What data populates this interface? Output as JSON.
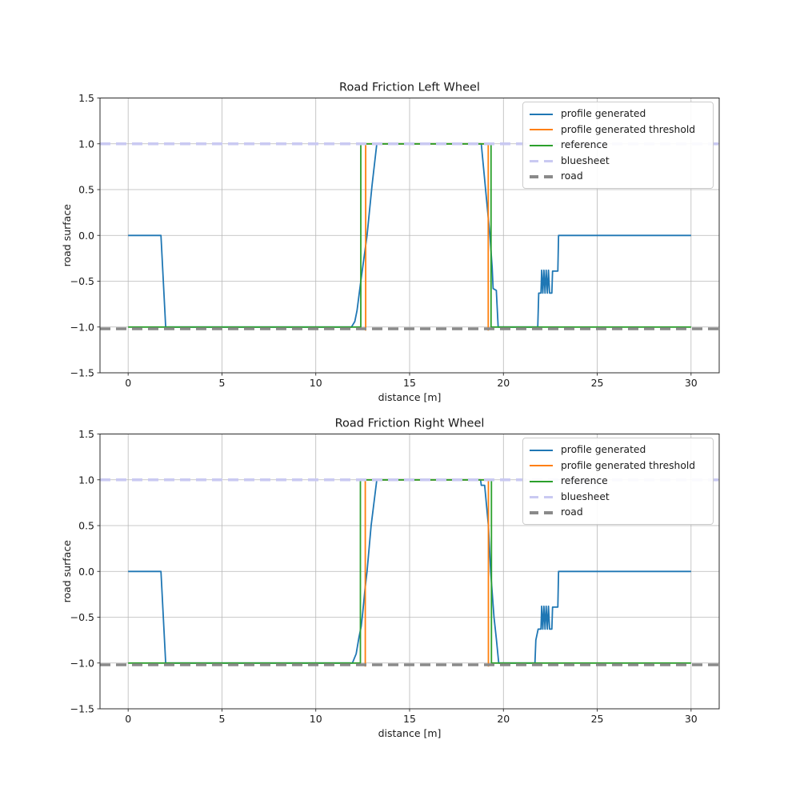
{
  "figure": {
    "background": "#ffffff",
    "grid_color": "#b8b8b8",
    "spine_color": "#2b2b2b",
    "text_color": "#1a1a1a"
  },
  "chart_data": [
    {
      "type": "line",
      "title": "Road Friction Left Wheel",
      "xlabel": "distance [m]",
      "ylabel": "road surface",
      "xlim": [
        -1.5,
        31.5
      ],
      "ylim": [
        -1.5,
        1.5
      ],
      "xticks": [
        0,
        5,
        10,
        15,
        20,
        25,
        30
      ],
      "yticks": [
        -1.5,
        -1.0,
        -0.5,
        0.0,
        0.5,
        1.0,
        1.5
      ],
      "grid": true,
      "legend_position": "upper right",
      "series": [
        {
          "name": "profile generated",
          "color": "#1f77b4",
          "line_style": "solid",
          "line_width": 1.8,
          "points": [
            [
              0,
              0
            ],
            [
              1.75,
              0
            ],
            [
              2.0,
              -1
            ],
            [
              11.9,
              -1
            ],
            [
              12.08,
              -0.94
            ],
            [
              12.2,
              -0.82
            ],
            [
              12.4,
              -0.5
            ],
            [
              12.6,
              -0.2
            ],
            [
              12.73,
              0
            ],
            [
              13.0,
              0.55
            ],
            [
              13.25,
              1
            ],
            [
              18.82,
              1
            ],
            [
              19.05,
              0.5
            ],
            [
              19.28,
              0
            ],
            [
              19.4,
              -0.35
            ],
            [
              19.45,
              -0.58
            ],
            [
              19.62,
              -0.6
            ],
            [
              19.72,
              -1
            ],
            [
              21.83,
              -1
            ],
            [
              21.88,
              -0.63
            ],
            [
              22.0,
              -0.63
            ],
            [
              22.04,
              -0.38
            ],
            [
              22.1,
              -0.63
            ],
            [
              22.16,
              -0.38
            ],
            [
              22.22,
              -0.63
            ],
            [
              22.28,
              -0.38
            ],
            [
              22.34,
              -0.63
            ],
            [
              22.4,
              -0.38
            ],
            [
              22.46,
              -0.63
            ],
            [
              22.58,
              -0.63
            ],
            [
              22.62,
              -0.39
            ],
            [
              22.9,
              -0.39
            ],
            [
              22.94,
              0
            ],
            [
              30,
              0
            ]
          ]
        },
        {
          "name": "profile generated threshold",
          "color": "#ff7f0e",
          "line_style": "solid",
          "line_width": 1.8,
          "points": [
            [
              12.66,
              -1.04
            ],
            [
              12.66,
              1
            ],
            [
              19.19,
              1
            ],
            [
              19.19,
              -1.04
            ]
          ]
        },
        {
          "name": "reference",
          "color": "#2ca02c",
          "line_style": "solid",
          "line_width": 1.8,
          "points": [
            [
              0,
              -1
            ],
            [
              12.4,
              -1
            ],
            [
              12.4,
              1
            ],
            [
              19.34,
              1
            ],
            [
              19.34,
              -1
            ],
            [
              30,
              -1
            ]
          ]
        },
        {
          "name": "bluesheet",
          "color": "#c9c9f2",
          "line_style": "dashed",
          "line_width": 3.5,
          "points": [
            [
              -1.5,
              1
            ],
            [
              31.5,
              1
            ]
          ]
        },
        {
          "name": "road",
          "color": "#8a8a8a",
          "line_style": "dashed",
          "line_width": 3.5,
          "points": [
            [
              -1.5,
              -1.02
            ],
            [
              31.5,
              -1.02
            ]
          ]
        }
      ]
    },
    {
      "type": "line",
      "title": "Road Friction Right Wheel",
      "xlabel": "distance [m]",
      "ylabel": "road surface",
      "xlim": [
        -1.5,
        31.5
      ],
      "ylim": [
        -1.5,
        1.5
      ],
      "xticks": [
        0,
        5,
        10,
        15,
        20,
        25,
        30
      ],
      "yticks": [
        -1.5,
        -1.0,
        -0.5,
        0.0,
        0.5,
        1.0,
        1.5
      ],
      "grid": true,
      "legend_position": "upper right",
      "series": [
        {
          "name": "profile generated",
          "color": "#1f77b4",
          "line_style": "solid",
          "line_width": 1.8,
          "points": [
            [
              0,
              0
            ],
            [
              1.75,
              0
            ],
            [
              2.0,
              -1
            ],
            [
              11.95,
              -1
            ],
            [
              12.15,
              -0.9
            ],
            [
              12.3,
              -0.72
            ],
            [
              12.42,
              -0.6
            ],
            [
              12.5,
              -0.45
            ],
            [
              12.62,
              -0.2
            ],
            [
              12.73,
              0
            ],
            [
              12.95,
              0.5
            ],
            [
              13.25,
              1
            ],
            [
              18.78,
              1
            ],
            [
              18.82,
              0.94
            ],
            [
              19.0,
              0.94
            ],
            [
              19.2,
              0.5
            ],
            [
              19.32,
              0
            ],
            [
              19.5,
              -0.5
            ],
            [
              19.56,
              -0.62
            ],
            [
              19.63,
              -0.75
            ],
            [
              19.75,
              -1
            ],
            [
              21.68,
              -1
            ],
            [
              21.73,
              -0.75
            ],
            [
              21.85,
              -0.63
            ],
            [
              22.0,
              -0.63
            ],
            [
              22.04,
              -0.38
            ],
            [
              22.1,
              -0.63
            ],
            [
              22.16,
              -0.38
            ],
            [
              22.22,
              -0.63
            ],
            [
              22.28,
              -0.38
            ],
            [
              22.34,
              -0.63
            ],
            [
              22.4,
              -0.38
            ],
            [
              22.46,
              -0.63
            ],
            [
              22.58,
              -0.63
            ],
            [
              22.62,
              -0.39
            ],
            [
              22.9,
              -0.39
            ],
            [
              22.94,
              0
            ],
            [
              30,
              0
            ]
          ]
        },
        {
          "name": "profile generated threshold",
          "color": "#ff7f0e",
          "line_style": "solid",
          "line_width": 1.8,
          "points": [
            [
              12.64,
              -1.04
            ],
            [
              12.64,
              1
            ],
            [
              19.2,
              1
            ],
            [
              19.2,
              -1.04
            ]
          ]
        },
        {
          "name": "reference",
          "color": "#2ca02c",
          "line_style": "solid",
          "line_width": 1.8,
          "points": [
            [
              0,
              -1
            ],
            [
              12.38,
              -1
            ],
            [
              12.38,
              1
            ],
            [
              19.36,
              1
            ],
            [
              19.36,
              -1
            ],
            [
              30,
              -1
            ]
          ]
        },
        {
          "name": "bluesheet",
          "color": "#c9c9f2",
          "line_style": "dashed",
          "line_width": 3.5,
          "points": [
            [
              -1.5,
              1
            ],
            [
              31.5,
              1
            ]
          ]
        },
        {
          "name": "road",
          "color": "#8a8a8a",
          "line_style": "dashed",
          "line_width": 3.5,
          "points": [
            [
              -1.5,
              -1.02
            ],
            [
              31.5,
              -1.02
            ]
          ]
        }
      ]
    }
  ]
}
